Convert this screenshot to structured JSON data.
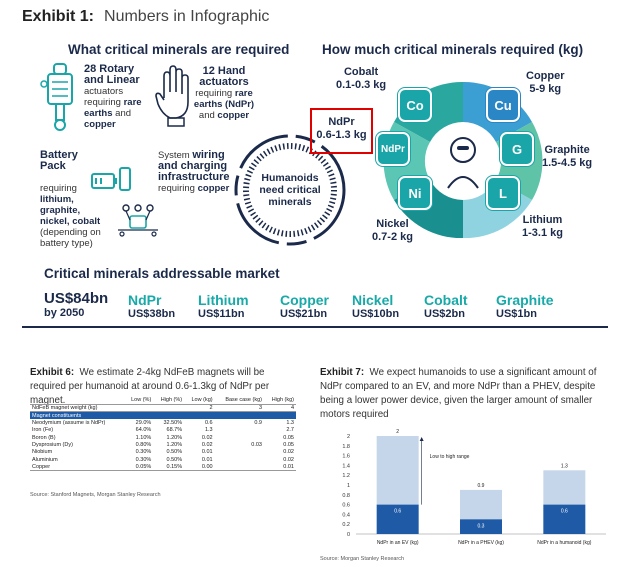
{
  "exhibit1": {
    "label": "Exhibit 1:",
    "title": "Numbers in Infographic",
    "left_heading": "What critical minerals are required",
    "right_heading": "How much critical minerals required (kg)",
    "rotary": {
      "bold": "28 Rotary and Linear",
      "text1": "actuators requiring ",
      "pink": "rare earths",
      "text2": " and ",
      "copper": "copper"
    },
    "hand": {
      "bold": "12 Hand actuators",
      "text1": "requiring ",
      "pink": "rare earths (NdPr)",
      "text2": " and ",
      "copper": "copper"
    },
    "battery": {
      "bold": "Battery Pack",
      "text1": "requiring ",
      "pink": "lithium, graphite, nickel, cobalt",
      "text2": "(depending on battery type)"
    },
    "wiring": {
      "text1": "System ",
      "bold1": "wiring and charging infrastructure",
      "text2": " requiring ",
      "copper": "copper"
    },
    "center": "Humanoids need critical minerals",
    "minerals": [
      {
        "name": "Cobalt",
        "value": "0.1-0.3 kg",
        "symbol": "Co"
      },
      {
        "name": "NdPr",
        "value": "0.6-1.3 kg",
        "symbol": "NdPr"
      },
      {
        "name": "Nickel",
        "value": "0.7-2 kg",
        "symbol": "Ni"
      },
      {
        "name": "Copper",
        "value": "5-9 kg",
        "symbol": "Cu"
      },
      {
        "name": "Graphite",
        "value": "1.5-4.5 kg",
        "symbol": "G"
      },
      {
        "name": "Lithium",
        "value": "1-3.1 kg",
        "symbol": "L"
      }
    ],
    "market_heading": "Critical minerals addressable market",
    "market_total": {
      "value": "US$84bn",
      "sub": "by 2050"
    },
    "market": [
      {
        "name": "NdPr",
        "value": "US$38bn"
      },
      {
        "name": "Lithium",
        "value": "US$11bn"
      },
      {
        "name": "Copper",
        "value": "US$21bn"
      },
      {
        "name": "Nickel",
        "value": "US$10bn"
      },
      {
        "name": "Cobalt",
        "value": "US$2bn"
      },
      {
        "name": "Graphite",
        "value": "US$1bn"
      }
    ]
  },
  "exhibit6": {
    "label": "Exhibit 6:",
    "text": "We estimate 2-4kg NdFeB magnets will be required per humanoid at around 0.6-1.3kg of NdPr per magnet.",
    "columns": [
      "Low (%)",
      "High (%)",
      "Low (kg)",
      "Base case (kg)",
      "High (kg)"
    ],
    "weight_row": {
      "label": "NdFeB magnet weight (kg)",
      "values": [
        "",
        "",
        "2",
        "3",
        "4"
      ]
    },
    "constituents_label": "Magnet constituents",
    "rows": [
      {
        "label": "Neodymium (assume is NdPr)",
        "values": [
          "29.0%",
          "32.50%",
          "0.6",
          "0.9",
          "1.3"
        ]
      },
      {
        "label": "Iron (Fe)",
        "values": [
          "64.0%",
          "68.7%",
          "1.3",
          "",
          "2.7"
        ]
      },
      {
        "label": "Boron (B)",
        "values": [
          "1.10%",
          "1.20%",
          "0.02",
          "",
          "0.05"
        ]
      },
      {
        "label": "Dysprosium (Dy)",
        "values": [
          "0.80%",
          "1.20%",
          "0.02",
          "0.03",
          "0.05"
        ]
      },
      {
        "label": "Niobium",
        "values": [
          "0.30%",
          "0.50%",
          "0.01",
          "",
          "0.02"
        ]
      },
      {
        "label": "Aluminium",
        "values": [
          "0.30%",
          "0.50%",
          "0.01",
          "",
          "0.02"
        ]
      },
      {
        "label": "Copper",
        "values": [
          "0.05%",
          "0.15%",
          "0.00",
          "",
          "0.01"
        ]
      }
    ],
    "source": "Source: Stanford Magnets, Morgan Stanley Research"
  },
  "exhibit7": {
    "label": "Exhibit 7:",
    "text": "We expect humanoids to use a significant amount of NdPr compared to an EV, and more NdPr than a PHEV, despite being a lower power device, given the larger amount of smaller motors required",
    "annotation": "Low to high range",
    "source": "Source: Morgan Stanley Research"
  },
  "chart_data": {
    "type": "bar",
    "categories": [
      "NdPr in an EV (kg)",
      "NdPr in a PHEV (kg)",
      "NdPr in a humanoid (kg)"
    ],
    "series": [
      {
        "values": [
          0.6,
          0.3,
          0.6
        ]
      },
      {
        "values": [
          2,
          0.9,
          1.3
        ]
      }
    ],
    "ylim": [
      0,
      2
    ],
    "yticks": [
      0,
      0.2,
      0.4,
      0.6,
      0.8,
      1,
      1.2,
      1.4,
      1.6,
      1.8,
      2
    ],
    "colors": {
      "low": "#1f5aa6",
      "high": "#c6d6ea"
    }
  }
}
